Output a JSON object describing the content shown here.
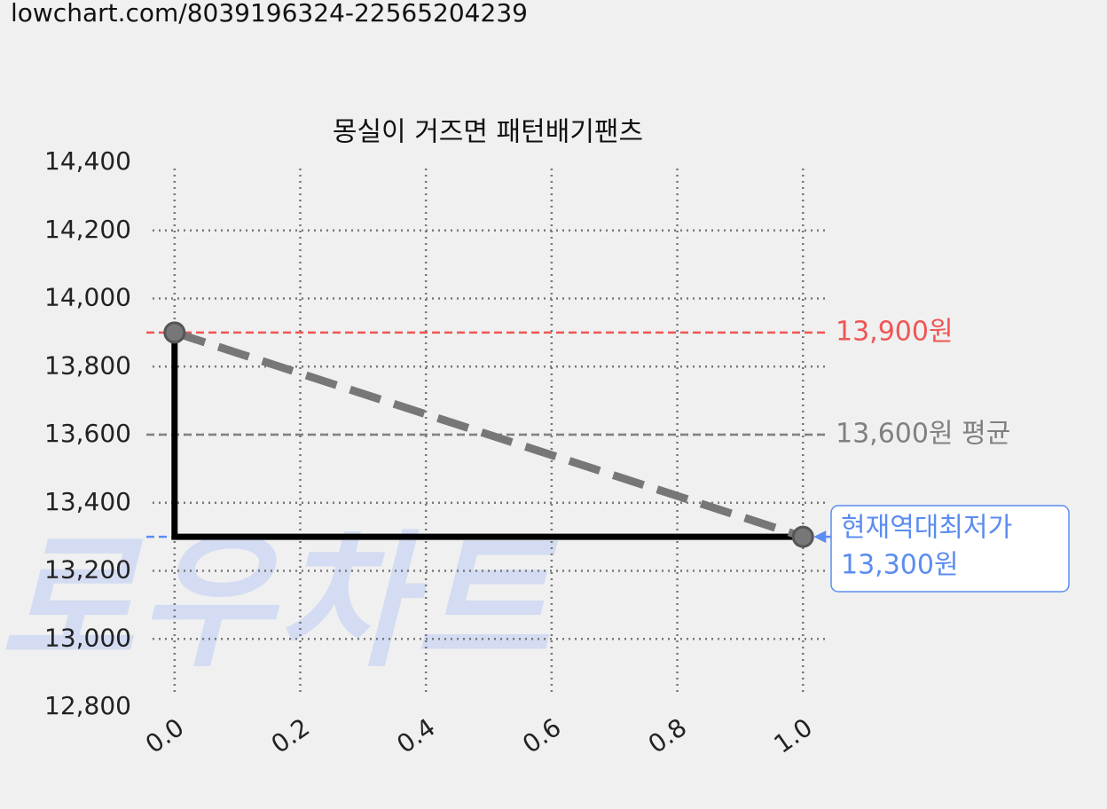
{
  "url": "lowchart.com/8039196324-22565204239",
  "chart_data": {
    "type": "line",
    "title": "몽실이 거즈면 패턴배기팬츠",
    "watermark": "로우차트",
    "series": [
      {
        "x": [
          0,
          0,
          1
        ],
        "values": [
          13900,
          13300,
          13300
        ],
        "color": "#000000",
        "dash": false,
        "markers": false
      },
      {
        "x": [
          0,
          1
        ],
        "values": [
          13900,
          13300
        ],
        "color": "#777777",
        "dash": true,
        "markers": true
      }
    ],
    "xlim": [
      -0.035,
      1.042
    ],
    "xticks": [
      {
        "value": 0,
        "label": "0.0"
      },
      {
        "value": 0.2,
        "label": "0.2"
      },
      {
        "value": 0.4,
        "label": "0.4"
      },
      {
        "value": 0.6,
        "label": "0.6"
      },
      {
        "value": 0.8,
        "label": "0.8"
      },
      {
        "value": 1,
        "label": "1.0"
      }
    ],
    "ylim": [
      12800,
      14400
    ],
    "yticks": [
      {
        "value": 12800,
        "label": "12,800"
      },
      {
        "value": 13000,
        "label": "13,000"
      },
      {
        "value": 13200,
        "label": "13,200"
      },
      {
        "value": 13400,
        "label": "13,400"
      },
      {
        "value": 13600,
        "label": "13,600"
      },
      {
        "value": 13800,
        "label": "13,800"
      },
      {
        "value": 14000,
        "label": "14,000"
      },
      {
        "value": 14200,
        "label": "14,200"
      },
      {
        "value": 14400,
        "label": "14,400"
      }
    ],
    "grid": true,
    "reference_lines": [
      {
        "value": 13900,
        "label": "13,900원",
        "color": "#f05555"
      },
      {
        "value": 13600,
        "label": "13,600원 평균",
        "color": "#808080"
      },
      {
        "value": 13300,
        "color": "#5b8cf0"
      }
    ],
    "annotation": {
      "x": 1,
      "y": 13300,
      "lines": [
        "현재역대최저가",
        "13,300원"
      ],
      "color": "#5b8cf0"
    }
  }
}
